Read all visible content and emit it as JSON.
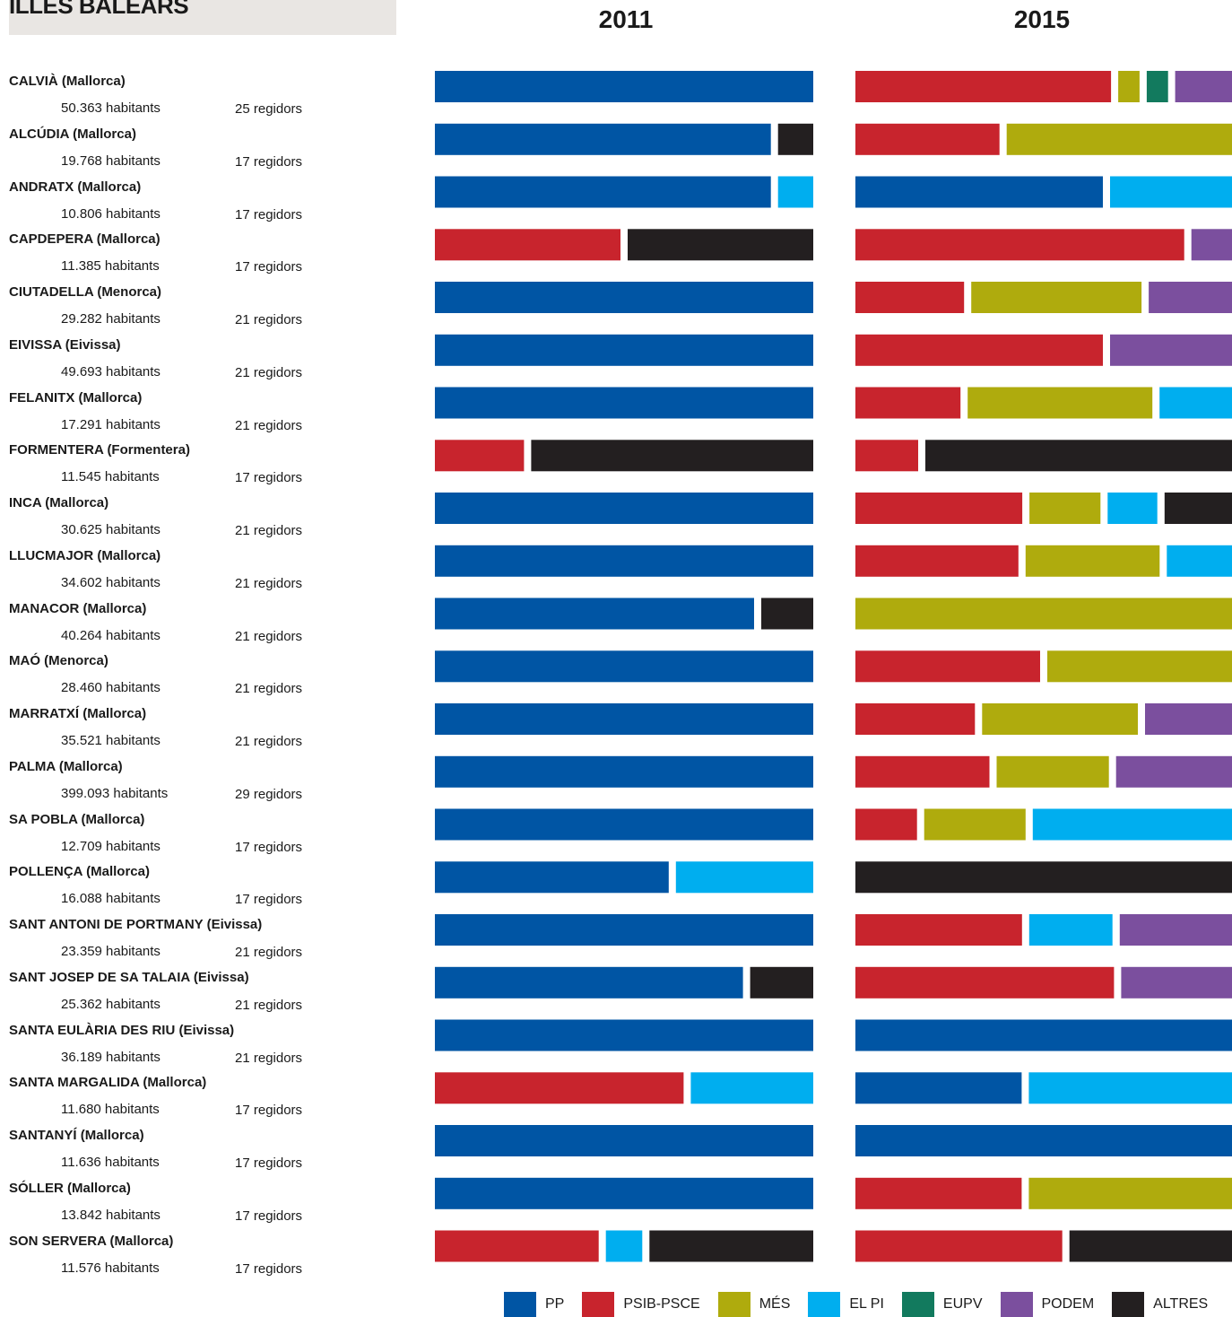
{
  "header": {
    "region": "ILLES BALEARS",
    "year_left": "2011",
    "year_right": "2015"
  },
  "colors": {
    "PP": "#0055a4",
    "PSIB-PSCE": "#c8242d",
    "MÉS": "#afab0d",
    "EL PI": "#00aeef",
    "EUPV": "#127a5e",
    "PODEM": "#7b4f9e",
    "ALTRES": "#231f20"
  },
  "legend": [
    {
      "key": "PP",
      "label": "PP"
    },
    {
      "key": "PSIB-PSCE",
      "label": "PSIB-PSCE"
    },
    {
      "key": "MÉS",
      "label": "MÉS"
    },
    {
      "key": "EL PI",
      "label": "EL PI"
    },
    {
      "key": "EUPV",
      "label": "EUPV"
    },
    {
      "key": "PODEM",
      "label": "PODEM"
    },
    {
      "key": "ALTRES",
      "label": "ALTRES"
    }
  ],
  "chart_data": {
    "type": "bar",
    "stacked": true,
    "series_names": [
      "2011",
      "2015"
    ],
    "municipalities": [
      {
        "name": "CALVIÀ (Mallorca)",
        "habitants": "50.363 habitants",
        "regidors": "25 regidors",
        "y2011": [
          {
            "party": "PP",
            "share": 1.0
          }
        ],
        "y2015": [
          {
            "party": "PSIB-PSCE",
            "share": 0.72
          },
          {
            "party": "MÉS",
            "share": 0.06
          },
          {
            "party": "EUPV",
            "share": 0.06
          },
          {
            "party": "PODEM",
            "share": 0.16
          }
        ]
      },
      {
        "name": "ALCÚDIA (Mallorca)",
        "habitants": "19.768 habitants",
        "regidors": "17 regidors",
        "y2011": [
          {
            "party": "PP",
            "share": 0.905
          },
          {
            "party": "ALTRES",
            "share": 0.095
          }
        ],
        "y2015": [
          {
            "party": "PSIB-PSCE",
            "share": 0.39
          },
          {
            "party": "MÉS",
            "share": 0.61
          }
        ]
      },
      {
        "name": "ANDRATX (Mallorca)",
        "habitants": "10.806 habitants",
        "regidors": "17 regidors",
        "y2011": [
          {
            "party": "PP",
            "share": 0.905
          },
          {
            "party": "EL PI",
            "share": 0.095
          }
        ],
        "y2015": [
          {
            "party": "PP",
            "share": 0.67
          },
          {
            "party": "EL PI",
            "share": 0.33
          }
        ]
      },
      {
        "name": "CAPDEPERA (Mallorca)",
        "habitants": "11.385 habitants",
        "regidors": "17 regidors",
        "y2011": [
          {
            "party": "PSIB-PSCE",
            "share": 0.5
          },
          {
            "party": "ALTRES",
            "share": 0.5
          }
        ],
        "y2015": [
          {
            "party": "PSIB-PSCE",
            "share": 0.89
          },
          {
            "party": "PODEM",
            "share": 0.11
          }
        ]
      },
      {
        "name": "CIUTADELLA (Menorca)",
        "habitants": "29.282 habitants",
        "regidors": "21 regidors",
        "y2011": [
          {
            "party": "PP",
            "share": 1.0
          }
        ],
        "y2015": [
          {
            "party": "PSIB-PSCE",
            "share": 0.3
          },
          {
            "party": "MÉS",
            "share": 0.47
          },
          {
            "party": "PODEM",
            "share": 0.23
          }
        ]
      },
      {
        "name": "EIVISSA (Eivissa)",
        "habitants": "49.693 habitants",
        "regidors": "21 regidors",
        "y2011": [
          {
            "party": "PP",
            "share": 1.0
          }
        ],
        "y2015": [
          {
            "party": "PSIB-PSCE",
            "share": 0.67
          },
          {
            "party": "PODEM",
            "share": 0.33
          }
        ]
      },
      {
        "name": "FELANITX (Mallorca)",
        "habitants": "17.291 habitants",
        "regidors": "21 regidors",
        "y2011": [
          {
            "party": "PP",
            "share": 1.0
          }
        ],
        "y2015": [
          {
            "party": "PSIB-PSCE",
            "share": 0.29
          },
          {
            "party": "MÉS",
            "share": 0.51
          },
          {
            "party": "EL PI",
            "share": 0.2
          }
        ]
      },
      {
        "name": "FORMENTERA (Formentera)",
        "habitants": "11.545 habitants",
        "regidors": "17 regidors",
        "y2011": [
          {
            "party": "PSIB-PSCE",
            "share": 0.24
          },
          {
            "party": "ALTRES",
            "share": 0.76
          }
        ],
        "y2015": [
          {
            "party": "PSIB-PSCE",
            "share": 0.17
          },
          {
            "party": "ALTRES",
            "share": 0.83
          }
        ]
      },
      {
        "name": "INCA (Mallorca)",
        "habitants": "30.625 habitants",
        "regidors": "21 regidors",
        "y2011": [
          {
            "party": "PP",
            "share": 1.0
          }
        ],
        "y2015": [
          {
            "party": "PSIB-PSCE",
            "share": 0.47
          },
          {
            "party": "MÉS",
            "share": 0.2
          },
          {
            "party": "EL PI",
            "share": 0.14
          },
          {
            "party": "ALTRES",
            "share": 0.19
          }
        ]
      },
      {
        "name": "LLUCMAJOR (Mallorca)",
        "habitants": "34.602 habitants",
        "regidors": "21 regidors",
        "y2011": [
          {
            "party": "PP",
            "share": 1.0
          }
        ],
        "y2015": [
          {
            "party": "PSIB-PSCE",
            "share": 0.45
          },
          {
            "party": "MÉS",
            "share": 0.37
          },
          {
            "party": "EL PI",
            "share": 0.18
          }
        ]
      },
      {
        "name": "MANACOR (Mallorca)",
        "habitants": "40.264 habitants",
        "regidors": "21 regidors",
        "y2011": [
          {
            "party": "PP",
            "share": 0.86
          },
          {
            "party": "ALTRES",
            "share": 0.14
          }
        ],
        "y2015": [
          {
            "party": "MÉS",
            "share": 1.0
          }
        ]
      },
      {
        "name": "MAÓ (Menorca)",
        "habitants": "28.460 habitants",
        "regidors": "21 regidors",
        "y2011": [
          {
            "party": "PP",
            "share": 1.0
          }
        ],
        "y2015": [
          {
            "party": "PSIB-PSCE",
            "share": 0.5
          },
          {
            "party": "MÉS",
            "share": 0.5
          }
        ]
      },
      {
        "name": "MARRATXÍ (Mallorca)",
        "habitants": "35.521 habitants",
        "regidors": "21 regidors",
        "y2011": [
          {
            "party": "PP",
            "share": 1.0
          }
        ],
        "y2015": [
          {
            "party": "PSIB-PSCE",
            "share": 0.33
          },
          {
            "party": "MÉS",
            "share": 0.43
          },
          {
            "party": "PODEM",
            "share": 0.24
          }
        ]
      },
      {
        "name": "PALMA (Mallorca)",
        "habitants": "399.093 habitants",
        "regidors": "29 regidors",
        "y2011": [
          {
            "party": "PP",
            "share": 1.0
          }
        ],
        "y2015": [
          {
            "party": "PSIB-PSCE",
            "share": 0.37
          },
          {
            "party": "MÉS",
            "share": 0.31
          },
          {
            "party": "PODEM",
            "share": 0.32
          }
        ]
      },
      {
        "name": "SA POBLA (Mallorca)",
        "habitants": "12.709 habitants",
        "regidors": "17 regidors",
        "y2011": [
          {
            "party": "PP",
            "share": 1.0
          }
        ],
        "y2015": [
          {
            "party": "PSIB-PSCE",
            "share": 0.17
          },
          {
            "party": "MÉS",
            "share": 0.28
          },
          {
            "party": "EL PI",
            "share": 0.55
          }
        ]
      },
      {
        "name": "POLLENÇA (Mallorca)",
        "habitants": "16.088 habitants",
        "regidors": "17 regidors",
        "y2011": [
          {
            "party": "PP",
            "share": 0.63
          },
          {
            "party": "EL PI",
            "share": 0.37
          }
        ],
        "y2015": [
          {
            "party": "ALTRES",
            "share": 1.0
          }
        ]
      },
      {
        "name": "SANT ANTONI DE PORTMANY (Eivissa)",
        "habitants": "23.359 habitants",
        "regidors": "21 regidors",
        "y2011": [
          {
            "party": "PP",
            "share": 1.0
          }
        ],
        "y2015": [
          {
            "party": "PSIB-PSCE",
            "share": 0.46
          },
          {
            "party": "EL PI",
            "share": 0.23
          },
          {
            "party": "PODEM",
            "share": 0.31
          }
        ]
      },
      {
        "name": "SANT JOSEP DE SA TALAIA (Eivissa)",
        "habitants": "25.362 habitants",
        "regidors": "21 regidors",
        "y2011": [
          {
            "party": "PP",
            "share": 0.83
          },
          {
            "party": "ALTRES",
            "share": 0.17
          }
        ],
        "y2015": [
          {
            "party": "PSIB-PSCE",
            "share": 0.7
          },
          {
            "party": "PODEM",
            "share": 0.3
          }
        ]
      },
      {
        "name": "SANTA EULÀRIA DES RIU (Eivissa)",
        "habitants": "36.189 habitants",
        "regidors": "21 regidors",
        "y2011": [
          {
            "party": "PP",
            "share": 1.0
          }
        ],
        "y2015": [
          {
            "party": "PP",
            "share": 1.0
          }
        ]
      },
      {
        "name": "SANTA MARGALIDA (Mallorca)",
        "habitants": "11.680 habitants",
        "regidors": "17 regidors",
        "y2011": [
          {
            "party": "PSIB-PSCE",
            "share": 0.67
          },
          {
            "party": "EL PI",
            "share": 0.33
          }
        ],
        "y2015": [
          {
            "party": "PP",
            "share": 0.45
          },
          {
            "party": "EL PI",
            "share": 0.55
          }
        ]
      },
      {
        "name": "SANTANYÍ (Mallorca)",
        "habitants": "11.636 habitants",
        "regidors": "17 regidors",
        "y2011": [
          {
            "party": "PP",
            "share": 1.0
          }
        ],
        "y2015": [
          {
            "party": "PP",
            "share": 1.0
          }
        ]
      },
      {
        "name": "SÓLLER (Mallorca)",
        "habitants": "13.842 habitants",
        "regidors": "17 regidors",
        "y2011": [
          {
            "party": "PP",
            "share": 1.0
          }
        ],
        "y2015": [
          {
            "party": "PSIB-PSCE",
            "share": 0.45
          },
          {
            "party": "MÉS",
            "share": 0.55
          }
        ]
      },
      {
        "name": "SON SERVERA (Mallorca)",
        "habitants": "11.576 habitants",
        "regidors": "17 regidors",
        "y2011": [
          {
            "party": "PSIB-PSCE",
            "share": 0.45
          },
          {
            "party": "EL PI",
            "share": 0.1
          },
          {
            "party": "ALTRES",
            "share": 0.45
          }
        ],
        "y2015": [
          {
            "party": "PSIB-PSCE",
            "share": 0.56
          },
          {
            "party": "ALTRES",
            "share": 0.44
          }
        ]
      }
    ]
  }
}
